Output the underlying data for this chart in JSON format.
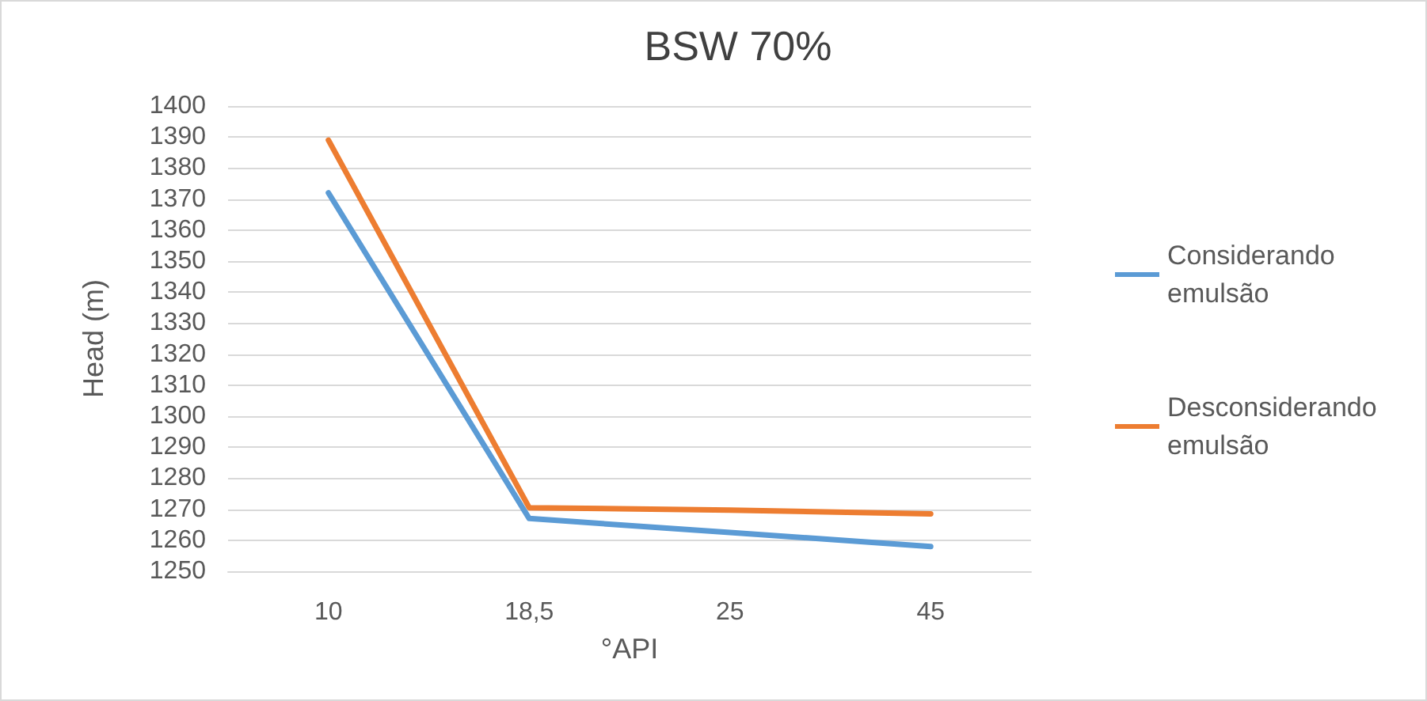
{
  "chart_data": {
    "type": "line",
    "title": "BSW 70%",
    "xlabel": "°API",
    "ylabel": "Head (m)",
    "categories": [
      "10",
      "18,5",
      "25",
      "45"
    ],
    "series": [
      {
        "name": "Considerando emulsão",
        "color": "#5b9bd5",
        "values": [
          1372,
          1267,
          1262.5,
          1258
        ]
      },
      {
        "name": "Desconsiderando emulsão",
        "color": "#ed7d31",
        "values": [
          1389,
          1270.5,
          1269.7,
          1268.5
        ]
      }
    ],
    "ylim": [
      1250,
      1400
    ],
    "yticks": [
      1250,
      1260,
      1270,
      1280,
      1290,
      1300,
      1310,
      1320,
      1330,
      1340,
      1350,
      1360,
      1370,
      1380,
      1390,
      1400
    ],
    "grid": "y",
    "legend": "right",
    "marker": "none",
    "line_style": "solid"
  }
}
